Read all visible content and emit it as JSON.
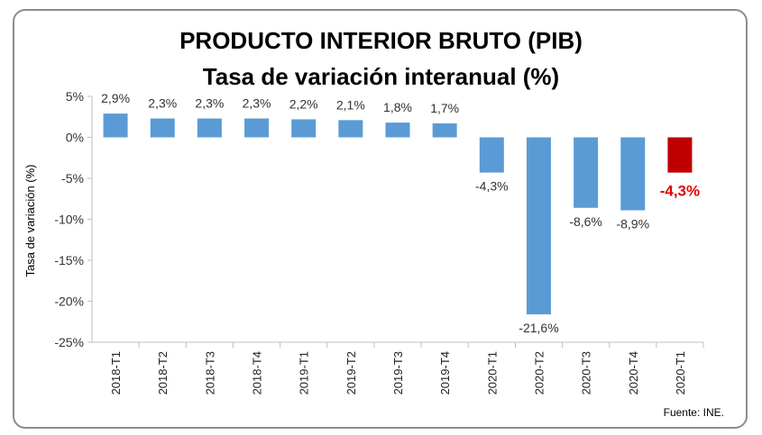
{
  "chart_data": {
    "type": "bar",
    "title": "PRODUCTO INTERIOR BRUTO (PIB)",
    "subtitle": "Tasa de variación interanual (%)",
    "ylabel": "Tasa de variación (%)",
    "xlabel": "",
    "source": "Fuente: INE.",
    "ylim": [
      -25,
      5
    ],
    "yticks": [
      5,
      0,
      -5,
      -10,
      -15,
      -20,
      -25
    ],
    "ytick_labels": [
      "5%",
      "0%",
      "-5%",
      "-10%",
      "-15%",
      "-20%",
      "-25%"
    ],
    "categories": [
      "2018-T1",
      "2018-T2",
      "2018-T3",
      "2018-T4",
      "2019-T1",
      "2019-T2",
      "2019-T3",
      "2019-T4",
      "2020-T1",
      "2020-T2",
      "2020-T3",
      "2020-T4",
      "2020-T1"
    ],
    "values": [
      2.9,
      2.3,
      2.3,
      2.3,
      2.2,
      2.1,
      1.8,
      1.7,
      -4.3,
      -21.6,
      -8.6,
      -8.9,
      -4.3
    ],
    "data_labels": [
      "2,9%",
      "2,3%",
      "2,3%",
      "2,3%",
      "2,2%",
      "2,1%",
      "1,8%",
      "1,7%",
      "-4,3%",
      "-21,6%",
      "-8,6%",
      "-8,9%",
      "-4,3%"
    ],
    "highlight_index": 12,
    "colors": {
      "bar": "#5b9bd5",
      "highlight": "#c00000",
      "highlight_label": "#e00000"
    },
    "grid": false,
    "legend": "none"
  }
}
